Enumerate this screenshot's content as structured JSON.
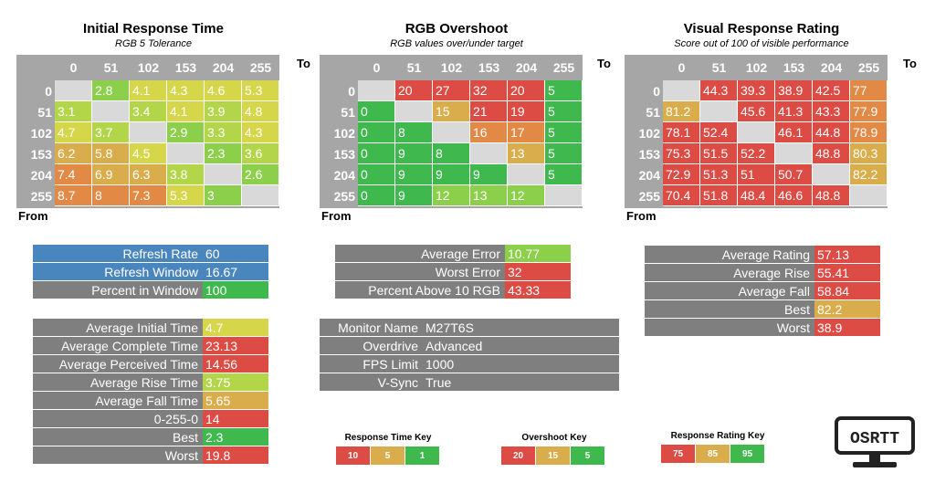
{
  "colors": {
    "green": "#3fb94d",
    "lightgreen": "#8ccf4a",
    "yellowgreen": "#b3d54a",
    "yellow": "#d6d64a",
    "amber": "#d9ad4c",
    "orange": "#e28a45",
    "red": "#dd4b45",
    "blue": "#4a86be",
    "gray": "#7f7f7f",
    "header_gray": "#a6a6a6",
    "diag_gray": "#d9d9d9"
  },
  "headings": {
    "initial": {
      "title": "Initial Response Time",
      "subtitle": "RGB 5 Tolerance"
    },
    "overshoot": {
      "title": "RGB Overshoot",
      "subtitle": "RGB values over/under target"
    },
    "rating": {
      "title": "Visual Response Rating",
      "subtitle": "Score out of 100 of visible performance"
    },
    "to_label": "To",
    "from_label": "From"
  },
  "chart_data": [
    {
      "type": "heatmap",
      "title": "Initial Response Time",
      "subtitle": "RGB 5 Tolerance",
      "xlabel": "To",
      "ylabel": "From",
      "x": [
        "0",
        "51",
        "102",
        "153",
        "204",
        "255"
      ],
      "y": [
        "0",
        "51",
        "102",
        "153",
        "204",
        "255"
      ],
      "values": [
        [
          null,
          "2.8",
          "4.1",
          "4.3",
          "4.6",
          "5.3"
        ],
        [
          "3.1",
          null,
          "3.4",
          "4.1",
          "3.9",
          "4.8"
        ],
        [
          "4.7",
          "3.7",
          null,
          "2.9",
          "3.3",
          "4.3"
        ],
        [
          "6.2",
          "5.8",
          "4.5",
          null,
          "2.3",
          "3.6"
        ],
        [
          "7.4",
          "6.9",
          "6.3",
          "3.8",
          null,
          "2.6"
        ],
        [
          "8.7",
          "8",
          "7.3",
          "5.3",
          "3",
          null
        ]
      ],
      "cell_colors": [
        [
          null,
          "lightgreen",
          "yellow",
          "yellow",
          "yellow",
          "yellow"
        ],
        [
          "yellowgreen",
          null,
          "yellowgreen",
          "yellow",
          "yellowgreen",
          "yellow"
        ],
        [
          "yellow",
          "yellowgreen",
          null,
          "lightgreen",
          "yellowgreen",
          "yellow"
        ],
        [
          "amber",
          "amber",
          "yellow",
          null,
          "lightgreen",
          "yellowgreen"
        ],
        [
          "orange",
          "amber",
          "amber",
          "yellowgreen",
          null,
          "lightgreen"
        ],
        [
          "orange",
          "orange",
          "orange",
          "yellow",
          "lightgreen",
          null
        ]
      ]
    },
    {
      "type": "heatmap",
      "title": "RGB Overshoot",
      "subtitle": "RGB values over/under target",
      "xlabel": "To",
      "ylabel": "From",
      "x": [
        "0",
        "51",
        "102",
        "153",
        "204",
        "255"
      ],
      "y": [
        "0",
        "51",
        "102",
        "153",
        "204",
        "255"
      ],
      "values": [
        [
          null,
          "20",
          "27",
          "32",
          "20",
          "5"
        ],
        [
          "0",
          null,
          "15",
          "21",
          "19",
          "5"
        ],
        [
          "0",
          "8",
          null,
          "16",
          "17",
          "5"
        ],
        [
          "0",
          "9",
          "8",
          null,
          "13",
          "5"
        ],
        [
          "0",
          "9",
          "9",
          "9",
          null,
          "5"
        ],
        [
          "0",
          "9",
          "12",
          "13",
          "12",
          null
        ]
      ],
      "cell_colors": [
        [
          null,
          "red",
          "red",
          "red",
          "red",
          "green"
        ],
        [
          "green",
          null,
          "amber",
          "red",
          "red",
          "green"
        ],
        [
          "green",
          "green",
          null,
          "orange",
          "orange",
          "green"
        ],
        [
          "green",
          "green",
          "green",
          null,
          "amber",
          "green"
        ],
        [
          "green",
          "green",
          "green",
          "green",
          null,
          "green"
        ],
        [
          "green",
          "green",
          "lightgreen",
          "lightgreen",
          "lightgreen",
          null
        ]
      ]
    },
    {
      "type": "heatmap",
      "title": "Visual Response Rating",
      "subtitle": "Score out of 100 of visible performance",
      "xlabel": "To",
      "ylabel": "From",
      "x": [
        "0",
        "51",
        "102",
        "153",
        "204",
        "255"
      ],
      "y": [
        "0",
        "51",
        "102",
        "153",
        "204",
        "255"
      ],
      "values": [
        [
          null,
          "44.3",
          "39.3",
          "38.9",
          "42.5",
          "77"
        ],
        [
          "81.2",
          null,
          "45.6",
          "41.3",
          "43.3",
          "77.9"
        ],
        [
          "78.1",
          "52.4",
          null,
          "46.1",
          "44.8",
          "78.9"
        ],
        [
          "75.3",
          "51.5",
          "52.2",
          null,
          "48.8",
          "80.3"
        ],
        [
          "72.9",
          "51.3",
          "51",
          "50.7",
          null,
          "82.2"
        ],
        [
          "70.4",
          "51.8",
          "48.4",
          "46.6",
          "48.8",
          null
        ]
      ],
      "cell_colors": [
        [
          null,
          "red",
          "red",
          "red",
          "red",
          "orange"
        ],
        [
          "amber",
          null,
          "red",
          "red",
          "red",
          "orange"
        ],
        [
          "red",
          "red",
          null,
          "red",
          "red",
          "orange"
        ],
        [
          "red",
          "red",
          "red",
          null,
          "red",
          "amber"
        ],
        [
          "red",
          "red",
          "red",
          "red",
          null,
          "amber"
        ],
        [
          "red",
          "red",
          "red",
          "red",
          "red",
          null
        ]
      ]
    }
  ],
  "refresh_block": [
    {
      "label": "Refresh Rate",
      "value": "60",
      "label_color": "blue",
      "value_color": "blue"
    },
    {
      "label": "Refresh Window",
      "value": "16.67",
      "label_color": "blue",
      "value_color": "blue"
    },
    {
      "label": "Percent in Window",
      "value": "100",
      "label_color": "gray",
      "value_color": "green"
    }
  ],
  "times_block": [
    {
      "label": "Average Initial Time",
      "value": "4.7",
      "value_color": "yellow"
    },
    {
      "label": "Average Complete Time",
      "value": "23.13",
      "value_color": "red"
    },
    {
      "label": "Average Perceived Time",
      "value": "14.56",
      "value_color": "red"
    },
    {
      "label": "Average Rise Time",
      "value": "3.75",
      "value_color": "yellowgreen"
    },
    {
      "label": "Average Fall Time",
      "value": "5.65",
      "value_color": "amber"
    },
    {
      "label": "0-255-0",
      "value": "14",
      "value_color": "red"
    },
    {
      "label": "Best",
      "value": "2.3",
      "value_color": "green"
    },
    {
      "label": "Worst",
      "value": "19.8",
      "value_color": "red"
    }
  ],
  "error_block": [
    {
      "label": "Average Error",
      "value": "10.77",
      "value_color": "lightgreen"
    },
    {
      "label": "Worst Error",
      "value": "32",
      "value_color": "red"
    },
    {
      "label": "Percent Above 10 RGB",
      "value": "43.33",
      "value_color": "red"
    }
  ],
  "monitor_block": [
    {
      "label": "Monitor Name",
      "value": "M27T6S"
    },
    {
      "label": "Overdrive",
      "value": "Advanced"
    },
    {
      "label": "FPS Limit",
      "value": "1000"
    },
    {
      "label": "V-Sync",
      "value": "True"
    }
  ],
  "rating_block": [
    {
      "label": "Average Rating",
      "value": "57.13",
      "value_color": "red"
    },
    {
      "label": "Average Rise",
      "value": "55.41",
      "value_color": "red"
    },
    {
      "label": "Average Fall",
      "value": "58.84",
      "value_color": "red"
    },
    {
      "label": "Best",
      "value": "82.2",
      "value_color": "amber"
    },
    {
      "label": "Worst",
      "value": "38.9",
      "value_color": "red"
    }
  ],
  "keys": [
    {
      "title": "Response Time Key",
      "cells": [
        {
          "text": "10",
          "color": "red"
        },
        {
          "text": "5",
          "color": "amber"
        },
        {
          "text": "1",
          "color": "green"
        }
      ]
    },
    {
      "title": "Overshoot Key",
      "cells": [
        {
          "text": "20",
          "color": "red"
        },
        {
          "text": "15",
          "color": "amber"
        },
        {
          "text": "5",
          "color": "green"
        }
      ]
    },
    {
      "title": "Response Rating Key",
      "cells": [
        {
          "text": "75",
          "color": "red"
        },
        {
          "text": "85",
          "color": "amber"
        },
        {
          "text": "95",
          "color": "green"
        }
      ]
    }
  ],
  "logo": {
    "text": "OSRTT"
  }
}
